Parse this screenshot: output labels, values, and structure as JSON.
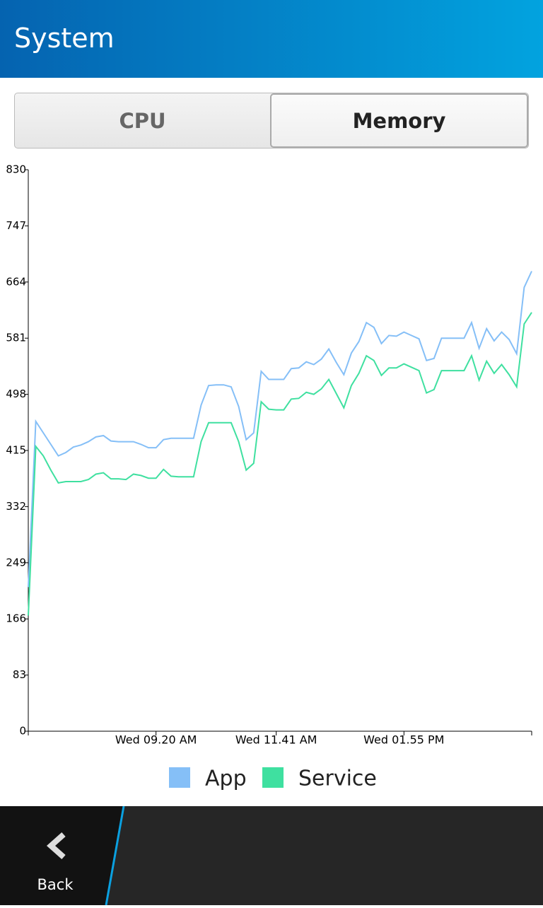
{
  "header": {
    "title": "System"
  },
  "tabs": [
    {
      "label": "CPU",
      "selected": false
    },
    {
      "label": "Memory",
      "selected": true
    }
  ],
  "chart_data": {
    "type": "line",
    "categories": [
      null,
      null,
      null,
      null,
      null,
      null,
      null,
      null,
      null,
      null,
      null,
      null,
      null,
      null,
      null,
      null,
      null,
      "Wed 09.20 AM",
      null,
      null,
      null,
      null,
      null,
      null,
      null,
      null,
      null,
      null,
      null,
      null,
      null,
      null,
      null,
      "Wed 11.41 AM",
      null,
      null,
      null,
      null,
      null,
      null,
      null,
      null,
      null,
      null,
      null,
      null,
      null,
      null,
      null,
      null,
      "Wed 01.55 PM",
      null,
      null,
      null,
      null,
      null,
      null,
      null,
      null,
      null,
      null,
      null,
      null,
      null,
      null,
      null,
      null,
      null
    ],
    "series": [
      {
        "name": "App",
        "color": "#85bff7",
        "values": [
          213,
          458,
          441,
          424,
          407,
          412,
          420,
          423,
          428,
          435,
          437,
          429,
          428,
          428,
          428,
          424,
          419,
          419,
          431,
          433,
          433,
          433,
          433,
          482,
          511,
          512,
          512,
          509,
          480,
          431,
          441,
          532,
          520,
          520,
          520,
          536,
          537,
          546,
          542,
          550,
          565,
          545,
          527,
          559,
          576,
          604,
          597,
          573,
          585,
          584,
          590,
          585,
          580,
          548,
          551,
          581,
          581,
          581,
          581,
          604,
          566,
          595,
          577,
          590,
          579,
          558,
          656,
          680
        ]
      },
      {
        "name": "Service",
        "color": "#3fe0a0",
        "values": [
          171,
          421,
          407,
          386,
          367,
          369,
          369,
          369,
          372,
          380,
          382,
          373,
          373,
          372,
          380,
          378,
          374,
          374,
          387,
          377,
          376,
          376,
          376,
          428,
          456,
          456,
          456,
          456,
          428,
          386,
          396,
          487,
          476,
          475,
          475,
          491,
          492,
          501,
          498,
          506,
          520,
          499,
          478,
          511,
          529,
          555,
          548,
          526,
          537,
          537,
          543,
          538,
          533,
          500,
          505,
          533,
          533,
          533,
          533,
          555,
          519,
          547,
          529,
          542,
          527,
          509,
          602,
          619
        ]
      }
    ],
    "ylim": [
      0,
      830
    ],
    "yticks": [
      0,
      83,
      166,
      249,
      332,
      415,
      498,
      581,
      664,
      747,
      830
    ],
    "grid": false
  },
  "footer": {
    "back": "Back"
  }
}
